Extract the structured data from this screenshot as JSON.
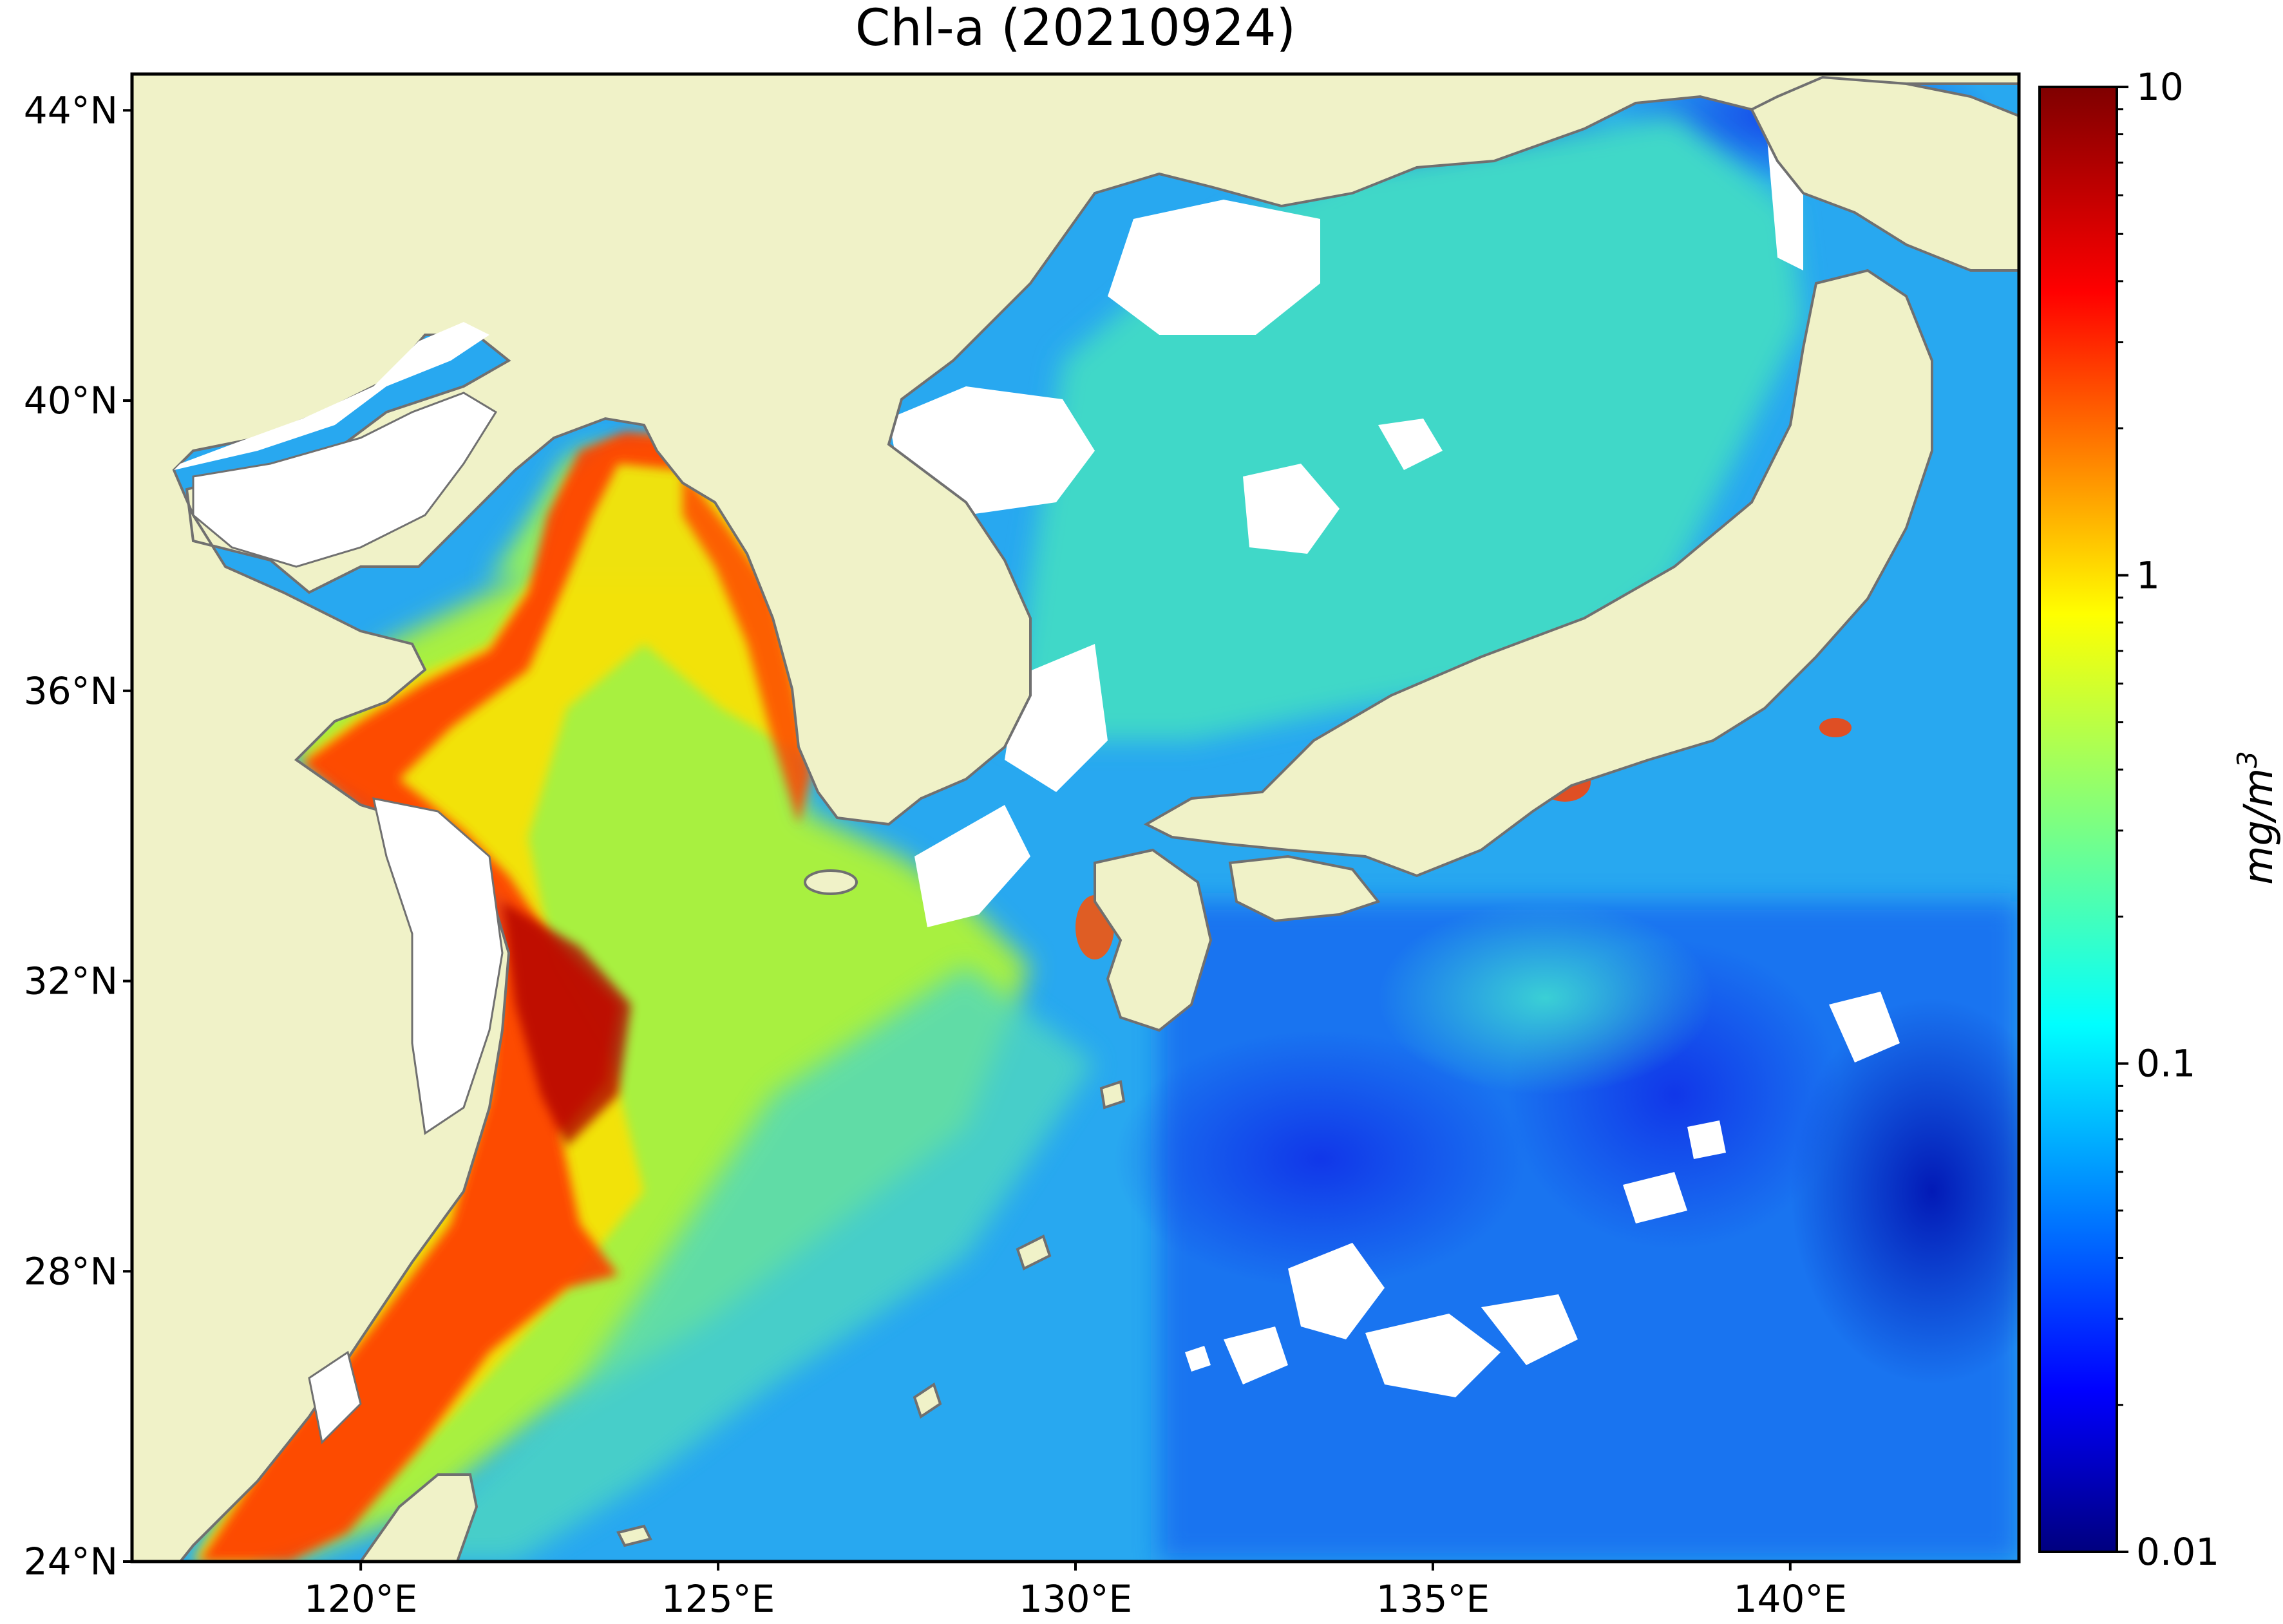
{
  "title": "Chl-a (20210924)",
  "map": {
    "lon_range": [
      116.8,
      143.2
    ],
    "lat_range": [
      24,
      44.5
    ],
    "lat_ticks": [
      {
        "value": 44,
        "label": "44°N"
      },
      {
        "value": 40,
        "label": "40°N"
      },
      {
        "value": 36,
        "label": "36°N"
      },
      {
        "value": 32,
        "label": "32°N"
      },
      {
        "value": 28,
        "label": "28°N"
      },
      {
        "value": 24,
        "label": "24°N"
      }
    ],
    "lon_ticks": [
      {
        "value": 120,
        "label": "120°E"
      },
      {
        "value": 125,
        "label": "125°E"
      },
      {
        "value": 130,
        "label": "130°E"
      },
      {
        "value": 135,
        "label": "135°E"
      },
      {
        "value": 140,
        "label": "140°E"
      }
    ],
    "colors": {
      "land": "#f0f2c8",
      "coastline": "#707070",
      "no_data": "#ffffff"
    }
  },
  "colorbar": {
    "label": "mg/m³",
    "label_base": "mg/m",
    "label_sup": "3",
    "scale": "log",
    "range": [
      0.01,
      10
    ],
    "ticks": [
      {
        "value": 10,
        "label": "10"
      },
      {
        "value": 1,
        "label": "1"
      },
      {
        "value": 0.1,
        "label": "0.1"
      },
      {
        "value": 0.01,
        "label": "0.01"
      }
    ],
    "colormap": "jet",
    "colormap_stops": [
      "#00007f",
      "#0000ff",
      "#007fff",
      "#00ffff",
      "#7fff7f",
      "#ffff00",
      "#ff7f00",
      "#ff0000",
      "#7f0000"
    ]
  }
}
